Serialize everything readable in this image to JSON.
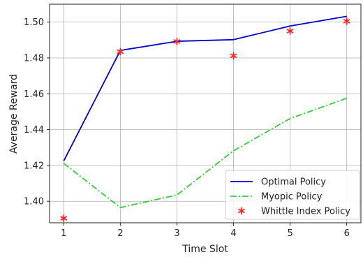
{
  "chart_data": {
    "type": "line",
    "xlabel": "Time Slot",
    "ylabel": "Average Reward",
    "x": [
      1,
      2,
      3,
      4,
      5,
      6
    ],
    "xlim": [
      0.75,
      6.25
    ],
    "ylim": [
      1.388,
      1.51
    ],
    "xticks": [
      "1",
      "2",
      "3",
      "4",
      "5",
      "6"
    ],
    "yticks": [
      "1.40",
      "1.42",
      "1.44",
      "1.46",
      "1.48",
      "1.50"
    ],
    "ytick_values": [
      1.4,
      1.42,
      1.44,
      1.46,
      1.48,
      1.5
    ],
    "grid": true,
    "legend_position": "lower right",
    "series": [
      {
        "name": "Optimal Policy",
        "style": "solid-line",
        "color": "#0000cc",
        "values": [
          1.4225,
          1.4842,
          1.4893,
          1.4902,
          1.4978,
          1.5032
        ]
      },
      {
        "name": "Myopic Policy",
        "style": "dashdot-line",
        "color": "#33cc33",
        "values": [
          1.4212,
          1.3965,
          1.4035,
          1.4282,
          1.4462,
          1.4575
        ]
      },
      {
        "name": "Whittle Index Policy",
        "style": "star-markers",
        "color": "#ff2222",
        "values": [
          1.3905,
          1.4835,
          1.4892,
          1.4812,
          1.495,
          1.5005
        ]
      }
    ]
  }
}
